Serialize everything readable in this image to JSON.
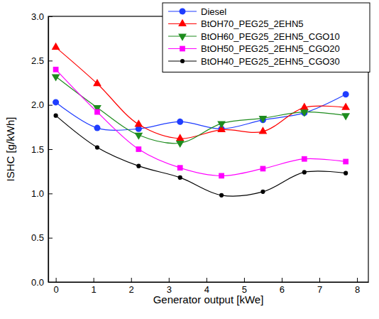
{
  "chart_data": {
    "type": "line",
    "xlabel": "Generator output [kWe]",
    "ylabel": "ISHC [g/kWh]",
    "x": [
      0,
      1.1,
      2.2,
      3.3,
      4.4,
      5.5,
      6.6,
      7.7
    ],
    "xlim": [
      -0.2,
      8.3
    ],
    "xticks": [
      0,
      1,
      2,
      3,
      4,
      5,
      6,
      7,
      8
    ],
    "ylim": [
      0,
      3
    ],
    "yticks": [
      {
        "value": 0,
        "label": "0.0"
      },
      {
        "value": 0.5,
        "label": "0.5"
      },
      {
        "value": 1,
        "label": "1.0"
      },
      {
        "value": 1.5,
        "label": "1.5"
      },
      {
        "value": 2,
        "label": "2.0"
      },
      {
        "value": 2.5,
        "label": "2.5"
      },
      {
        "value": 3,
        "label": "3.0"
      }
    ],
    "grid": false,
    "legend": "upper right",
    "series": [
      {
        "name": "Diesel",
        "color": "#1f3dff",
        "marker": "circle",
        "values": [
          2.03,
          1.74,
          1.73,
          1.81,
          1.73,
          1.83,
          1.91,
          2.12
        ]
      },
      {
        "name": "BtOH70_PEG25_2EHN5",
        "color": "#ff0000",
        "marker": "triangle-up",
        "values": [
          2.65,
          2.24,
          1.78,
          1.62,
          1.72,
          1.7,
          1.97,
          1.97
        ]
      },
      {
        "name": "BtOH60_PEG25_2EHN5_CGO10",
        "color": "#1e8c1e",
        "marker": "triangle-down",
        "values": [
          2.32,
          1.97,
          1.66,
          1.57,
          1.79,
          1.85,
          1.92,
          1.88
        ]
      },
      {
        "name": "BtOH50_PEG25_2EHN5_CGO20",
        "color": "#ff00ff",
        "marker": "square",
        "values": [
          2.4,
          1.92,
          1.5,
          1.29,
          1.2,
          1.28,
          1.39,
          1.36
        ]
      },
      {
        "name": "BtOH40_PEG25_2EHN5_CGO30",
        "color": "#000000",
        "marker": "small-circle",
        "values": [
          1.88,
          1.52,
          1.31,
          1.18,
          0.98,
          1.02,
          1.24,
          1.23
        ]
      }
    ]
  }
}
